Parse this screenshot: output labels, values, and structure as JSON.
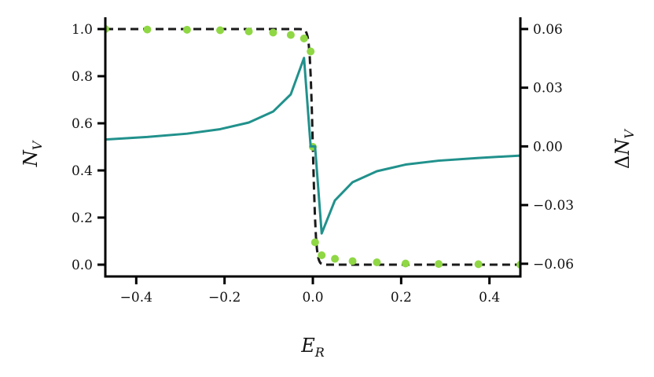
{
  "chart_data": {
    "type": "line",
    "xlabel": "E_R",
    "ylabel_left": "N_V",
    "ylabel_right": "ΔN_V",
    "xlabel_main": "E",
    "xlabel_sub": "R",
    "ylabel_left_main": "N",
    "ylabel_left_sub": "V",
    "ylabel_right_prefix": "Δ",
    "ylabel_right_main": "N",
    "ylabel_right_sub": "V",
    "xlim": [
      -0.47,
      0.47
    ],
    "ylim_left": [
      -0.05,
      1.05
    ],
    "ylim_right": [
      -0.0665,
      0.066
    ],
    "x_ticks": [
      -0.4,
      -0.2,
      0.0,
      0.2,
      0.4
    ],
    "x_tick_labels": [
      "−0.4",
      "−0.2",
      "0.0",
      "0.2",
      "0.4"
    ],
    "y_left_ticks": [
      0.0,
      0.2,
      0.4,
      0.6,
      0.8,
      1.0
    ],
    "y_left_tick_labels": [
      "0.0",
      "0.2",
      "0.4",
      "0.6",
      "0.8",
      "1.0"
    ],
    "y_right_ticks": [
      -0.06,
      -0.03,
      0.0,
      0.03,
      0.06
    ],
    "y_right_tick_labels": [
      "−0.06",
      "−0.03",
      "0.00",
      "0.03",
      "0.06"
    ],
    "grid": false,
    "series": [
      {
        "axis": "left",
        "style": "dashed",
        "color": "#1a1a1a",
        "function": "step",
        "step_center": 0.0,
        "step_width": 0.0035
      },
      {
        "axis": "left",
        "style": "dots",
        "color": "#8fd744",
        "x": [
          -0.47,
          -0.375,
          -0.285,
          -0.21,
          -0.145,
          -0.09,
          -0.05,
          -0.02,
          -0.005,
          0.0,
          0.005,
          0.02,
          0.05,
          0.09,
          0.145,
          0.21,
          0.285,
          0.375,
          0.47
        ],
        "y": [
          1.0,
          0.998,
          0.997,
          0.995,
          0.99,
          0.985,
          0.975,
          0.96,
          0.905,
          0.5,
          0.095,
          0.04,
          0.025,
          0.015,
          0.01,
          0.005,
          0.003,
          0.002,
          0.0
        ]
      },
      {
        "axis": "right",
        "style": "solid",
        "color": "#21918c",
        "x": [
          -0.47,
          -0.375,
          -0.285,
          -0.21,
          -0.145,
          -0.09,
          -0.05,
          -0.02,
          -0.005,
          0.0,
          0.005,
          0.02,
          0.05,
          0.09,
          0.145,
          0.21,
          0.285,
          0.375,
          0.47
        ],
        "y": [
          0.0035,
          0.0048,
          0.0065,
          0.0088,
          0.0122,
          0.0178,
          0.0266,
          0.0452,
          0.0,
          0.0,
          0.0,
          -0.0445,
          -0.0276,
          -0.0183,
          -0.0127,
          -0.0093,
          -0.0073,
          -0.0059,
          -0.0047
        ]
      }
    ]
  }
}
